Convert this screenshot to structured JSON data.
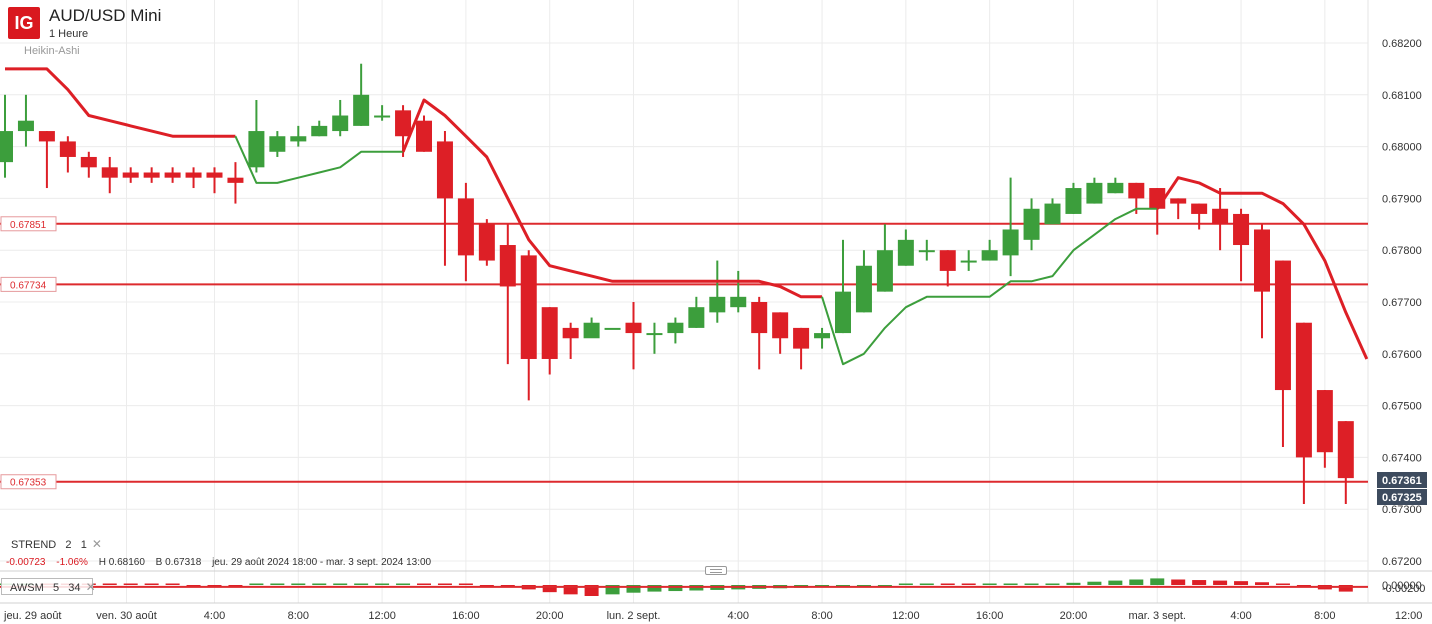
{
  "header": {
    "logo": "IG",
    "title": "AUD/USD Mini",
    "interval": "1 Heure",
    "chart_type": "Heikin-Ashi"
  },
  "indicators": {
    "strend": {
      "name": "STREND",
      "param1": "2",
      "param2": "1"
    },
    "awsm": {
      "name": "AWSM",
      "param1": "5",
      "param2": "34"
    },
    "close_glyph": "✕"
  },
  "stats": {
    "change": "-0.00723",
    "change_pct": "-1.06%",
    "high": "H 0.68160",
    "bid": "B 0.67318",
    "range": "jeu. 29 août 2024 18:00 - mar. 3 sept. 2024 13:00"
  },
  "colors": {
    "up": "#3c9e3c",
    "down": "#dd1f26",
    "level": "#dd2a2e",
    "grid": "#ececec",
    "price_tag": "#3d4b5e"
  },
  "chart_data": {
    "type": "candlestick",
    "y_ticks": [
      "0.68200",
      "0.68100",
      "0.68000",
      "0.67900",
      "0.67800",
      "0.67700",
      "0.67600",
      "0.67500",
      "0.67400",
      "0.67300",
      "0.67200"
    ],
    "ylim": [
      0.6718,
      0.6826
    ],
    "x_tick_labels": [
      {
        "label": "jeu. 29 août",
        "bar": -0.5
      },
      {
        "label": "ven. 30 août",
        "bar": 5.8
      },
      {
        "label": "4:00",
        "bar": 10
      },
      {
        "label": "8:00",
        "bar": 14
      },
      {
        "label": "12:00",
        "bar": 18
      },
      {
        "label": "16:00",
        "bar": 22
      },
      {
        "label": "20:00",
        "bar": 26
      },
      {
        "label": "lun. 2 sept.",
        "bar": 30
      },
      {
        "label": "4:00",
        "bar": 35
      },
      {
        "label": "8:00",
        "bar": 39
      },
      {
        "label": "12:00",
        "bar": 43
      },
      {
        "label": "16:00",
        "bar": 47
      },
      {
        "label": "20:00",
        "bar": 51
      },
      {
        "label": "mar. 3 sept.",
        "bar": 55
      },
      {
        "label": "4:00",
        "bar": 59
      },
      {
        "label": "8:00",
        "bar": 63
      },
      {
        "label": "12:00",
        "bar": 67
      }
    ],
    "candles": [
      [
        0.6797,
        0.6803,
        0.681,
        0.6794
      ],
      [
        0.6803,
        0.6805,
        0.681,
        0.68
      ],
      [
        0.6803,
        0.6801,
        0.6803,
        0.6792
      ],
      [
        0.6801,
        0.6798,
        0.6802,
        0.6795
      ],
      [
        0.6798,
        0.6796,
        0.6799,
        0.6794
      ],
      [
        0.6796,
        0.6794,
        0.6798,
        0.6791
      ],
      [
        0.6795,
        0.6794,
        0.6796,
        0.6793
      ],
      [
        0.6795,
        0.6794,
        0.6796,
        0.6793
      ],
      [
        0.6795,
        0.6794,
        0.6796,
        0.6793
      ],
      [
        0.6795,
        0.6794,
        0.6796,
        0.6792
      ],
      [
        0.6795,
        0.6794,
        0.6796,
        0.6791
      ],
      [
        0.6794,
        0.6793,
        0.6797,
        0.6789
      ],
      [
        0.6796,
        0.6803,
        0.6809,
        0.6795
      ],
      [
        0.6799,
        0.6802,
        0.6803,
        0.6798
      ],
      [
        0.6801,
        0.6802,
        0.6804,
        0.68
      ],
      [
        0.6802,
        0.6804,
        0.6805,
        0.6802
      ],
      [
        0.6803,
        0.6806,
        0.6809,
        0.6802
      ],
      [
        0.6804,
        0.681,
        0.6816,
        0.6804
      ],
      [
        0.6806,
        0.6806,
        0.6808,
        0.6805
      ],
      [
        0.6807,
        0.6802,
        0.6808,
        0.6798
      ],
      [
        0.6805,
        0.6799,
        0.6806,
        0.6799
      ],
      [
        0.6801,
        0.679,
        0.6803,
        0.6777
      ],
      [
        0.679,
        0.6779,
        0.6793,
        0.6774
      ],
      [
        0.6785,
        0.6778,
        0.6786,
        0.6777
      ],
      [
        0.6781,
        0.6773,
        0.6785,
        0.6758
      ],
      [
        0.6779,
        0.6759,
        0.678,
        0.6751
      ],
      [
        0.6769,
        0.6759,
        0.6769,
        0.6756
      ],
      [
        0.6765,
        0.6763,
        0.6766,
        0.6759
      ],
      [
        0.6763,
        0.6766,
        0.6767,
        0.6764
      ],
      [
        0.6765,
        0.6765,
        0.6765,
        0.6765
      ],
      [
        0.6766,
        0.6764,
        0.677,
        0.6757
      ],
      [
        0.6764,
        0.6764,
        0.6766,
        0.676
      ],
      [
        0.6764,
        0.6766,
        0.6767,
        0.6762
      ],
      [
        0.6765,
        0.6769,
        0.6771,
        0.6765
      ],
      [
        0.6768,
        0.6771,
        0.6778,
        0.6766
      ],
      [
        0.6769,
        0.6771,
        0.6776,
        0.6768
      ],
      [
        0.677,
        0.6764,
        0.6771,
        0.6757
      ],
      [
        0.6768,
        0.6763,
        0.6768,
        0.676
      ],
      [
        0.6765,
        0.6761,
        0.6765,
        0.6757
      ],
      [
        0.6763,
        0.6764,
        0.6765,
        0.6761
      ],
      [
        0.6764,
        0.6772,
        0.6782,
        0.6764
      ],
      [
        0.6768,
        0.6777,
        0.678,
        0.6768
      ],
      [
        0.6772,
        0.678,
        0.6785,
        0.6772
      ],
      [
        0.6777,
        0.6782,
        0.6784,
        0.6777
      ],
      [
        0.678,
        0.678,
        0.6782,
        0.6778
      ],
      [
        0.678,
        0.6776,
        0.678,
        0.6773
      ],
      [
        0.6778,
        0.6778,
        0.678,
        0.6776
      ],
      [
        0.6778,
        0.678,
        0.6782,
        0.6778
      ],
      [
        0.6779,
        0.6784,
        0.6794,
        0.6775
      ],
      [
        0.6782,
        0.6788,
        0.679,
        0.678
      ],
      [
        0.6785,
        0.6789,
        0.679,
        0.6785
      ],
      [
        0.6787,
        0.6792,
        0.6793,
        0.6787
      ],
      [
        0.6789,
        0.6793,
        0.6794,
        0.6789
      ],
      [
        0.6791,
        0.6793,
        0.6794,
        0.6791
      ],
      [
        0.6793,
        0.679,
        0.6793,
        0.6787
      ],
      [
        0.6792,
        0.6788,
        0.6792,
        0.6783
      ],
      [
        0.679,
        0.6789,
        0.679,
        0.6786
      ],
      [
        0.6789,
        0.6787,
        0.6789,
        0.6784
      ],
      [
        0.6788,
        0.6785,
        0.6792,
        0.678
      ],
      [
        0.6787,
        0.6781,
        0.6788,
        0.6774
      ],
      [
        0.6784,
        0.6772,
        0.6785,
        0.6763
      ],
      [
        0.6778,
        0.6753,
        0.6778,
        0.6742
      ],
      [
        0.6766,
        0.674,
        0.6766,
        0.6731
      ],
      [
        0.6753,
        0.6741,
        0.6753,
        0.6738
      ],
      [
        0.6747,
        0.6736,
        0.6747,
        0.6731
      ]
    ],
    "supertrend": [
      [
        0,
        0.6815,
        "down"
      ],
      [
        2,
        0.6815,
        "down"
      ],
      [
        3,
        0.6811,
        "down"
      ],
      [
        4,
        0.6806,
        "down"
      ],
      [
        5,
        0.6805,
        "down"
      ],
      [
        6,
        0.6804,
        "down"
      ],
      [
        7,
        0.6803,
        "down"
      ],
      [
        8,
        0.6802,
        "down"
      ],
      [
        9,
        0.6802,
        "down"
      ],
      [
        10,
        0.6802,
        "down"
      ],
      [
        11,
        0.6802,
        "down"
      ],
      [
        11,
        0.6802,
        "up"
      ],
      [
        12,
        0.6793,
        "up"
      ],
      [
        13,
        0.6793,
        "up"
      ],
      [
        14,
        0.6794,
        "up"
      ],
      [
        15,
        0.6795,
        "up"
      ],
      [
        16,
        0.6796,
        "up"
      ],
      [
        17,
        0.6799,
        "up"
      ],
      [
        18,
        0.6799,
        "up"
      ],
      [
        19,
        0.6799,
        "up"
      ],
      [
        19,
        0.6799,
        "down"
      ],
      [
        20,
        0.6809,
        "down"
      ],
      [
        21,
        0.6806,
        "down"
      ],
      [
        22,
        0.6802,
        "down"
      ],
      [
        23,
        0.6798,
        "down"
      ],
      [
        24,
        0.679,
        "down"
      ],
      [
        25,
        0.6782,
        "down"
      ],
      [
        26,
        0.6777,
        "down"
      ],
      [
        27,
        0.6776,
        "down"
      ],
      [
        28,
        0.6775,
        "down"
      ],
      [
        29,
        0.6774,
        "down"
      ],
      [
        30,
        0.6774,
        "down"
      ],
      [
        31,
        0.6774,
        "down"
      ],
      [
        32,
        0.6774,
        "down"
      ],
      [
        33,
        0.6774,
        "down"
      ],
      [
        34,
        0.6774,
        "down"
      ],
      [
        35,
        0.6774,
        "down"
      ],
      [
        36,
        0.6774,
        "down"
      ],
      [
        37,
        0.6773,
        "down"
      ],
      [
        38,
        0.6771,
        "down"
      ],
      [
        39,
        0.6771,
        "down"
      ],
      [
        39,
        0.6771,
        "up"
      ],
      [
        40,
        0.6758,
        "up"
      ],
      [
        41,
        0.676,
        "up"
      ],
      [
        42,
        0.6765,
        "up"
      ],
      [
        43,
        0.6769,
        "up"
      ],
      [
        44,
        0.6771,
        "up"
      ],
      [
        45,
        0.6771,
        "up"
      ],
      [
        46,
        0.6771,
        "up"
      ],
      [
        47,
        0.6771,
        "up"
      ],
      [
        48,
        0.6774,
        "up"
      ],
      [
        49,
        0.6774,
        "up"
      ],
      [
        50,
        0.6775,
        "up"
      ],
      [
        51,
        0.678,
        "up"
      ],
      [
        52,
        0.6783,
        "up"
      ],
      [
        53,
        0.6786,
        "up"
      ],
      [
        54,
        0.6788,
        "up"
      ],
      [
        55,
        0.6788,
        "up"
      ],
      [
        55,
        0.6788,
        "down"
      ],
      [
        56,
        0.6794,
        "down"
      ],
      [
        57,
        0.6793,
        "down"
      ],
      [
        58,
        0.6791,
        "down"
      ],
      [
        59,
        0.6791,
        "down"
      ],
      [
        60,
        0.6791,
        "down"
      ],
      [
        61,
        0.6789,
        "down"
      ],
      [
        62,
        0.6785,
        "down"
      ],
      [
        63,
        0.6778,
        "down"
      ],
      [
        64,
        0.6768,
        "down"
      ],
      [
        65,
        0.6759,
        "down"
      ]
    ],
    "levels": [
      {
        "value": 0.67851,
        "label": "0.67851"
      },
      {
        "value": 0.67734,
        "label": "0.67734"
      },
      {
        "value": 0.67353,
        "label": "0.67353"
      }
    ],
    "price_tags": [
      {
        "value": 0.67361,
        "label": "0.67361"
      },
      {
        "value": 0.67325,
        "label": "0.67325"
      }
    ],
    "awsm": {
      "y_ticks": [
        "0.00000",
        "-0.00200"
      ],
      "values": [
        9e-05,
        9e-05,
        8e-05,
        7e-05,
        6e-05,
        4e-05,
        3e-05,
        2e-05,
        1e-05,
        -1e-05,
        -2e-05,
        -4e-05,
        3e-05,
        6e-05,
        7e-05,
        8e-05,
        9e-05,
        0.0001,
        0.0001,
        0.00011,
        9e-05,
        6e-05,
        3e-05,
        -0.0002,
        -0.0004,
        -0.0008,
        -0.0013,
        -0.0017,
        -0.002,
        -0.0017,
        -0.0014,
        -0.0012,
        -0.0011,
        -0.001,
        -0.0009,
        -0.0008,
        -0.0007,
        -0.0006,
        -0.0005,
        -0.0004,
        -0.0003,
        -0.0001,
        -2e-05,
        5e-05,
        6e-05,
        5e-05,
        4e-05,
        4e-05,
        4e-05,
        6e-05,
        9e-05,
        0.0004,
        0.0006,
        0.0008,
        0.001,
        0.0012,
        0.001,
        0.0009,
        0.0008,
        0.0007,
        0.0005,
        0.0001,
        -0.0004,
        -0.0008,
        -0.0012
      ]
    }
  }
}
